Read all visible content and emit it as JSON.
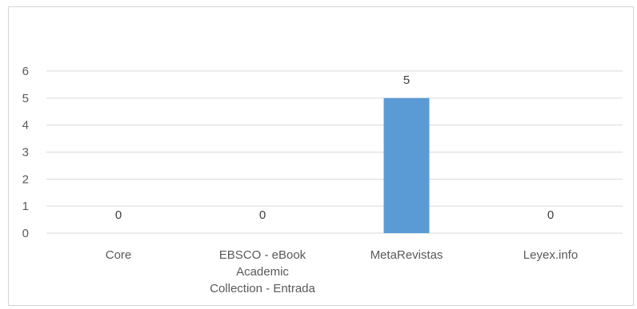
{
  "chart_data": {
    "type": "bar",
    "title": "",
    "xlabel": "",
    "ylabel": "",
    "categories": [
      [
        "Core"
      ],
      [
        "EBSCO - eBook",
        "Academic",
        "Collection - Entrada"
      ],
      [
        "MetaRevistas"
      ],
      [
        "Leyex.info"
      ]
    ],
    "values": [
      0,
      0,
      5,
      0
    ],
    "ylim": [
      0,
      6
    ],
    "yticks": [
      0,
      1,
      2,
      3,
      4,
      5,
      6
    ],
    "grid": true,
    "data_labels": true,
    "bar_color": "#5b9bd5",
    "grid_color": "#d9d9d9"
  }
}
